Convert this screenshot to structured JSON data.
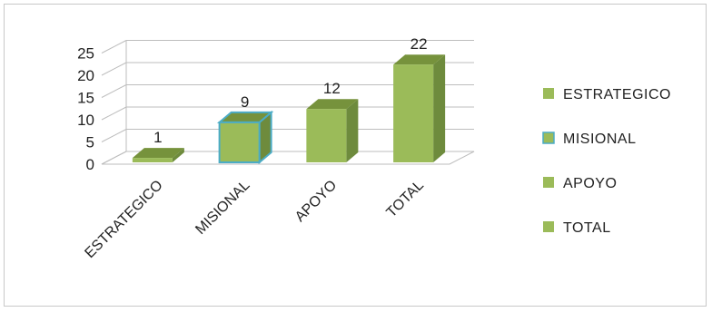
{
  "chart_data": {
    "type": "bar",
    "style": "3d-column",
    "categories": [
      "ESTRATEGICO",
      "MISIONAL",
      "APOYO",
      "TOTAL"
    ],
    "values": [
      1,
      9,
      12,
      22
    ],
    "data_labels": [
      "1",
      "9",
      "12",
      "22"
    ],
    "yticks": [
      "0",
      "5",
      "10",
      "15",
      "20",
      "25"
    ],
    "ylim": [
      0,
      25
    ],
    "grid": true,
    "legend_position": "right",
    "legend": [
      "ESTRATEGICO",
      "MISIONAL",
      "APOYO",
      "TOTAL"
    ],
    "colors": {
      "front": "#9bbb59",
      "side": "#6e8b3d",
      "top": "#76923c",
      "highlight_border": "#4bacc6"
    },
    "highlighted_index": 1
  }
}
